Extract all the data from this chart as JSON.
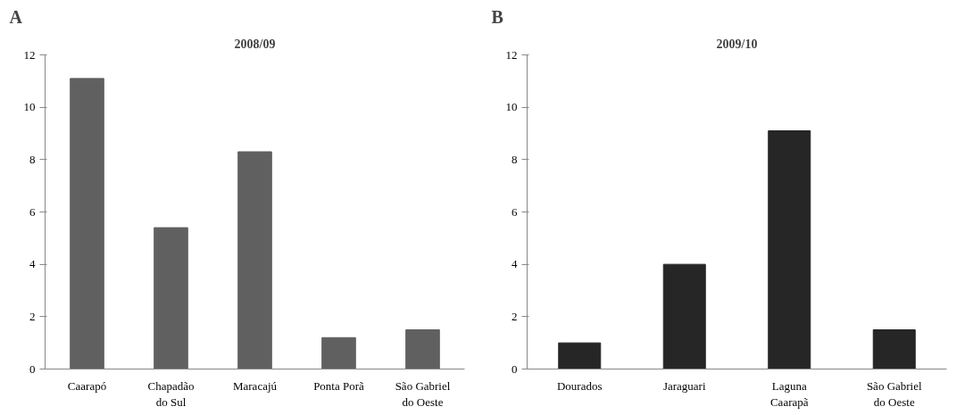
{
  "chart_data": [
    {
      "type": "bar",
      "title": "2008/09",
      "annotations": [
        "A"
      ],
      "categories": [
        "Caarapó",
        "Chapadão do Sul",
        "Maracajú",
        "Ponta Porã",
        "São Gabriel do Oeste"
      ],
      "values": [
        11.1,
        5.4,
        8.3,
        1.2,
        1.5
      ],
      "color": "#606060",
      "ylim": [
        0,
        12
      ],
      "yticks": [
        0,
        2,
        4,
        6,
        8,
        10,
        12
      ],
      "grid": false
    },
    {
      "type": "bar",
      "title": "2009/10",
      "annotations": [
        "B"
      ],
      "categories": [
        "Dourados",
        "Jaraguari",
        "Laguna Caarapã",
        "São Gabriel do Oeste"
      ],
      "values": [
        1.0,
        4.0,
        9.1,
        1.5
      ],
      "color": "#262626",
      "ylim": [
        0,
        12
      ],
      "yticks": [
        0,
        2,
        4,
        6,
        8,
        10,
        12
      ],
      "grid": false
    }
  ]
}
